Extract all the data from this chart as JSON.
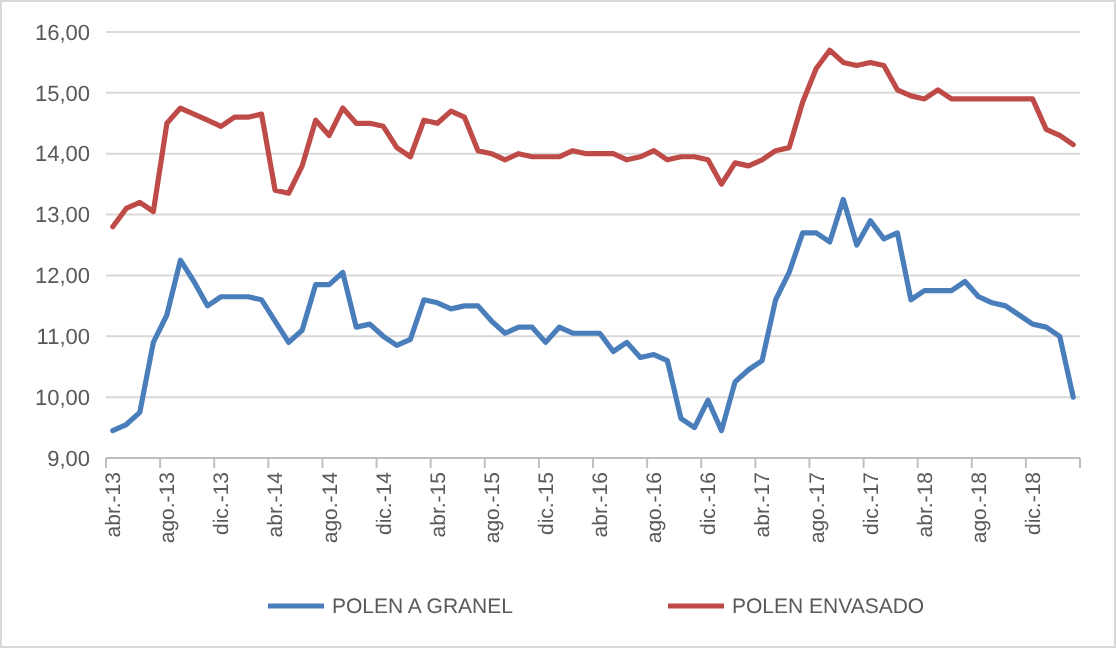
{
  "chart_data": {
    "type": "line",
    "categories": [
      "abr.-13",
      null,
      null,
      null,
      "ago.-13",
      null,
      null,
      null,
      "dic.-13",
      null,
      null,
      null,
      "abr.-14",
      null,
      null,
      null,
      "ago.-14",
      null,
      null,
      null,
      "dic.-14",
      null,
      null,
      null,
      "abr.-15",
      null,
      null,
      null,
      "ago.-15",
      null,
      null,
      null,
      "dic.-15",
      null,
      null,
      null,
      "abr.-16",
      null,
      null,
      null,
      "ago.-16",
      null,
      null,
      null,
      "dic.-16",
      null,
      null,
      null,
      "abr.-17",
      null,
      null,
      null,
      "ago.-17",
      null,
      null,
      null,
      "dic.-17",
      null,
      null,
      null,
      "abr.-18",
      null,
      null,
      null,
      "ago.-18",
      null,
      null,
      null,
      "dic.-18",
      null,
      null,
      null
    ],
    "series": [
      {
        "name": "POLEN A GRANEL",
        "color": "#4a7ebb",
        "values": [
          9.45,
          9.55,
          9.75,
          10.9,
          11.35,
          12.25,
          11.9,
          11.5,
          11.65,
          11.65,
          11.65,
          11.6,
          11.25,
          10.9,
          11.1,
          11.85,
          11.85,
          12.05,
          11.15,
          11.2,
          11.0,
          10.85,
          10.95,
          11.6,
          11.55,
          11.45,
          11.5,
          11.5,
          11.25,
          11.05,
          11.15,
          11.15,
          10.9,
          11.15,
          11.05,
          11.05,
          11.05,
          10.75,
          10.9,
          10.65,
          10.7,
          10.6,
          9.65,
          9.5,
          9.95,
          9.45,
          10.25,
          10.45,
          10.6,
          11.6,
          12.05,
          12.7,
          12.7,
          12.55,
          13.25,
          12.5,
          12.9,
          12.6,
          12.7,
          11.6,
          11.75,
          11.75,
          11.75,
          11.9,
          11.65,
          11.55,
          11.5,
          11.35,
          11.2,
          11.15,
          11.0,
          10.0
        ]
      },
      {
        "name": "POLEN ENVASADO",
        "color": "#be4b48",
        "values": [
          12.8,
          13.1,
          13.2,
          13.05,
          14.5,
          14.75,
          14.65,
          14.55,
          14.45,
          14.6,
          14.6,
          14.65,
          13.4,
          13.35,
          13.8,
          14.55,
          14.3,
          14.75,
          14.5,
          14.5,
          14.45,
          14.1,
          13.95,
          14.55,
          14.5,
          14.7,
          14.6,
          14.05,
          14.0,
          13.9,
          14.0,
          13.95,
          13.95,
          13.95,
          14.05,
          14.0,
          14.0,
          14.0,
          13.9,
          13.95,
          14.05,
          13.9,
          13.95,
          13.95,
          13.9,
          13.5,
          13.85,
          13.8,
          13.9,
          14.05,
          14.1,
          14.85,
          15.4,
          15.7,
          15.5,
          15.45,
          15.5,
          15.45,
          15.05,
          14.95,
          14.9,
          15.05,
          14.9,
          14.9,
          14.9,
          14.9,
          14.9,
          14.9,
          14.9,
          14.4,
          14.3,
          14.15
        ]
      }
    ],
    "ylim": [
      9,
      16
    ],
    "yticks": [
      {
        "value": 9,
        "label": "9,00"
      },
      {
        "value": 10,
        "label": "10,00"
      },
      {
        "value": 11,
        "label": "11,00"
      },
      {
        "value": 12,
        "label": "12,00"
      },
      {
        "value": 13,
        "label": "13,00"
      },
      {
        "value": 14,
        "label": "14,00"
      },
      {
        "value": 15,
        "label": "15,00"
      },
      {
        "value": 16,
        "label": "16,00"
      }
    ],
    "grid": "y",
    "legend": "bottom",
    "marker": "none",
    "line_style": "solid"
  }
}
